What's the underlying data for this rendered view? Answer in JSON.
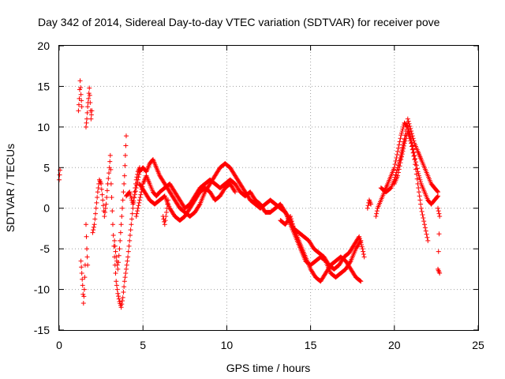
{
  "chart_data": {
    "type": "scatter",
    "title": "Day 342 of 2014, Sidereal Day-to-day VTEC variation (SDTVAR) for receiver pove",
    "xlabel": "GPS time / hours",
    "ylabel": "SDTVAR / TECUs",
    "xlim": [
      0,
      25
    ],
    "ylim": [
      -15,
      20
    ],
    "xticks": [
      0,
      5,
      10,
      15,
      20,
      25
    ],
    "yticks": [
      -15,
      -10,
      -5,
      0,
      5,
      10,
      15,
      20
    ],
    "grid": true,
    "marker": "plus",
    "color": "#ff0000",
    "segments": [
      {
        "points": [
          [
            0.0,
            3.5
          ],
          [
            0.05,
            4.7
          ]
        ]
      },
      {
        "points": [
          [
            1.15,
            12.0
          ],
          [
            1.2,
            13.5
          ],
          [
            1.25,
            15.7
          ],
          [
            1.3,
            14.0
          ],
          [
            1.35,
            12.5
          ]
        ]
      },
      {
        "points": [
          [
            1.3,
            -6.5
          ],
          [
            1.35,
            -8.0
          ],
          [
            1.4,
            -9.5
          ],
          [
            1.45,
            -11.7
          ],
          [
            1.5,
            -10.0
          ],
          [
            1.55,
            -7.0
          ]
        ]
      },
      {
        "points": [
          [
            1.6,
            10.0
          ],
          [
            1.65,
            11.0
          ],
          [
            1.7,
            12.5
          ],
          [
            1.75,
            13.5
          ],
          [
            1.8,
            14.8
          ],
          [
            1.85,
            13.0
          ],
          [
            1.9,
            11.0
          ],
          [
            1.95,
            12.0
          ]
        ]
      },
      {
        "points": [
          [
            1.6,
            -2.0
          ],
          [
            1.65,
            -5.0
          ],
          [
            1.7,
            -7.0
          ]
        ]
      },
      {
        "points": [
          [
            2.0,
            -3.0
          ],
          [
            2.1,
            -2.0
          ],
          [
            2.2,
            0.0
          ],
          [
            2.3,
            2.0
          ],
          [
            2.4,
            3.5
          ],
          [
            2.5,
            3.0
          ],
          [
            2.6,
            1.0
          ],
          [
            2.7,
            -1.0
          ],
          [
            2.8,
            0.5
          ],
          [
            2.9,
            3.0
          ],
          [
            3.0,
            5.0
          ],
          [
            3.05,
            6.5
          ],
          [
            3.1,
            3.0
          ],
          [
            3.2,
            -2.0
          ],
          [
            3.3,
            -6.0
          ],
          [
            3.4,
            -9.0
          ],
          [
            3.5,
            -10.5
          ],
          [
            3.6,
            -11.5
          ],
          [
            3.7,
            -12.2
          ],
          [
            3.8,
            -11.0
          ],
          [
            3.9,
            -9.0
          ],
          [
            4.0,
            -7.5
          ],
          [
            4.1,
            -6.0
          ],
          [
            4.2,
            -4.0
          ],
          [
            4.3,
            -2.0
          ],
          [
            4.4,
            0.0
          ],
          [
            4.5,
            2.0
          ],
          [
            4.6,
            3.5
          ],
          [
            4.7,
            4.5
          ],
          [
            4.8,
            5.0
          ]
        ]
      },
      {
        "points": [
          [
            3.3,
            -4.0
          ],
          [
            3.4,
            -6.0
          ],
          [
            3.5,
            -7.5
          ],
          [
            3.6,
            -5.0
          ],
          [
            3.7,
            -2.0
          ],
          [
            3.8,
            1.0
          ],
          [
            3.9,
            4.0
          ],
          [
            3.95,
            6.5
          ],
          [
            4.0,
            8.9
          ]
        ]
      },
      {
        "points": [
          [
            4.0,
            1.5
          ],
          [
            4.2,
            2.0
          ],
          [
            4.4,
            0.5
          ],
          [
            4.6,
            2.5
          ],
          [
            4.8,
            4.5
          ],
          [
            5.0,
            5.0
          ],
          [
            5.2,
            4.5
          ],
          [
            5.4,
            5.5
          ],
          [
            5.6,
            6.0
          ],
          [
            5.8,
            5.0
          ],
          [
            6.0,
            4.0
          ],
          [
            6.3,
            3.0
          ],
          [
            6.6,
            2.0
          ],
          [
            6.9,
            1.0
          ],
          [
            7.2,
            0.0
          ],
          [
            7.5,
            -0.5
          ],
          [
            7.8,
            -1.0
          ],
          [
            8.1,
            -0.5
          ],
          [
            8.4,
            0.5
          ],
          [
            8.7,
            2.0
          ],
          [
            9.0,
            3.0
          ],
          [
            9.3,
            4.0
          ],
          [
            9.6,
            5.0
          ],
          [
            9.9,
            5.5
          ],
          [
            10.2,
            5.0
          ],
          [
            10.5,
            4.0
          ],
          [
            10.8,
            3.0
          ],
          [
            11.1,
            2.0
          ],
          [
            11.4,
            1.0
          ],
          [
            11.7,
            0.5
          ],
          [
            12.0,
            0.0
          ],
          [
            12.3,
            0.5
          ],
          [
            12.6,
            1.0
          ],
          [
            12.9,
            0.5
          ],
          [
            13.2,
            0.0
          ],
          [
            13.5,
            -0.5
          ],
          [
            13.8,
            -1.5
          ],
          [
            14.1,
            -3.0
          ],
          [
            14.4,
            -4.5
          ],
          [
            14.7,
            -6.0
          ],
          [
            15.0,
            -7.5
          ],
          [
            15.3,
            -8.5
          ],
          [
            15.6,
            -9.0
          ],
          [
            15.9,
            -8.0
          ],
          [
            16.2,
            -7.0
          ],
          [
            16.5,
            -6.5
          ],
          [
            16.8,
            -6.0
          ],
          [
            17.1,
            -6.5
          ],
          [
            17.4,
            -7.5
          ],
          [
            17.7,
            -8.5
          ],
          [
            18.0,
            -9.0
          ]
        ]
      },
      {
        "points": [
          [
            4.6,
            -1.0
          ],
          [
            4.8,
            1.0
          ],
          [
            5.0,
            3.0
          ],
          [
            5.2,
            4.0
          ],
          [
            5.4,
            3.0
          ],
          [
            5.6,
            2.0
          ],
          [
            5.8,
            1.5
          ],
          [
            6.0,
            2.0
          ],
          [
            6.3,
            2.5
          ],
          [
            6.6,
            3.0
          ],
          [
            6.9,
            2.0
          ],
          [
            7.2,
            1.0
          ],
          [
            7.5,
            0.0
          ],
          [
            7.8,
            0.5
          ],
          [
            8.1,
            1.5
          ],
          [
            8.4,
            2.5
          ],
          [
            8.7,
            3.0
          ],
          [
            9.0,
            3.5
          ],
          [
            9.3,
            3.0
          ],
          [
            9.6,
            2.5
          ],
          [
            9.9,
            3.0
          ],
          [
            10.2,
            3.5
          ],
          [
            10.5,
            3.0
          ],
          [
            10.8,
            2.0
          ],
          [
            11.1,
            1.5
          ],
          [
            11.4,
            2.0
          ],
          [
            11.7,
            1.0
          ],
          [
            12.0,
            0.5
          ],
          [
            12.3,
            -0.5
          ],
          [
            12.6,
            -0.5
          ],
          [
            12.9,
            0.0
          ],
          [
            13.2,
            0.5
          ],
          [
            13.5,
            -0.5
          ],
          [
            13.8,
            -2.0
          ],
          [
            14.1,
            -3.5
          ],
          [
            14.4,
            -5.0
          ],
          [
            14.7,
            -6.5
          ],
          [
            15.0,
            -7.0
          ],
          [
            15.3,
            -6.5
          ],
          [
            15.6,
            -6.0
          ],
          [
            15.9,
            -6.5
          ],
          [
            16.2,
            -8.0
          ],
          [
            16.5,
            -8.5
          ],
          [
            16.8,
            -8.0
          ],
          [
            17.1,
            -7.5
          ],
          [
            17.4,
            -6.5
          ],
          [
            17.7,
            -5.0
          ],
          [
            18.0,
            -4.0
          ]
        ]
      },
      {
        "points": [
          [
            4.8,
            3.0
          ],
          [
            5.1,
            2.0
          ],
          [
            5.4,
            1.0
          ],
          [
            5.7,
            0.5
          ],
          [
            6.0,
            1.0
          ],
          [
            6.3,
            1.5
          ],
          [
            6.6,
            0.0
          ],
          [
            6.9,
            -1.0
          ],
          [
            7.2,
            -1.5
          ],
          [
            7.5,
            -1.0
          ],
          [
            7.8,
            0.0
          ],
          [
            8.1,
            1.0
          ],
          [
            8.4,
            2.0
          ],
          [
            8.7,
            2.5
          ],
          [
            9.0,
            2.0
          ],
          [
            9.3,
            1.0
          ],
          [
            9.6,
            1.5
          ],
          [
            9.9,
            2.5
          ],
          [
            10.2,
            3.0
          ],
          [
            10.5,
            2.0
          ]
        ]
      },
      {
        "points": [
          [
            6.2,
            -1.0
          ],
          [
            6.3,
            -2.0
          ],
          [
            6.4,
            -0.5
          ],
          [
            6.5,
            1.0
          ]
        ]
      },
      {
        "points": [
          [
            13.2,
            -1.5
          ],
          [
            13.5,
            -2.0
          ],
          [
            13.8,
            -1.0
          ],
          [
            14.0,
            -2.5
          ],
          [
            14.3,
            -3.0
          ],
          [
            14.6,
            -3.5
          ],
          [
            14.9,
            -4.0
          ],
          [
            15.2,
            -5.0
          ],
          [
            15.5,
            -5.5
          ],
          [
            15.8,
            -6.0
          ],
          [
            16.1,
            -7.0
          ],
          [
            16.4,
            -7.5
          ],
          [
            16.7,
            -7.0
          ],
          [
            17.0,
            -6.0
          ],
          [
            17.3,
            -5.5
          ],
          [
            17.6,
            -4.5
          ],
          [
            17.9,
            -3.5
          ],
          [
            18.1,
            -5.0
          ],
          [
            18.2,
            -6.0
          ]
        ]
      },
      {
        "points": [
          [
            18.4,
            0.0
          ],
          [
            18.5,
            1.0
          ],
          [
            18.6,
            0.5
          ]
        ]
      },
      {
        "points": [
          [
            18.9,
            -1.0
          ],
          [
            19.0,
            0.0
          ],
          [
            19.2,
            1.0
          ],
          [
            19.4,
            2.0
          ],
          [
            19.6,
            3.0
          ],
          [
            19.8,
            4.0
          ],
          [
            20.0,
            5.0
          ],
          [
            20.2,
            7.0
          ],
          [
            20.4,
            9.0
          ],
          [
            20.6,
            10.5
          ],
          [
            20.8,
            10.0
          ],
          [
            21.0,
            8.5
          ],
          [
            21.2,
            6.5
          ],
          [
            21.4,
            4.5
          ],
          [
            21.6,
            3.0
          ],
          [
            21.8,
            2.0
          ],
          [
            22.0,
            1.0
          ],
          [
            22.2,
            0.5
          ],
          [
            22.4,
            1.0
          ],
          [
            22.6,
            1.5
          ]
        ]
      },
      {
        "points": [
          [
            19.2,
            2.5
          ],
          [
            19.5,
            2.0
          ],
          [
            19.8,
            2.5
          ],
          [
            20.0,
            3.5
          ],
          [
            20.2,
            5.0
          ],
          [
            20.4,
            6.5
          ],
          [
            20.6,
            8.5
          ],
          [
            20.8,
            11.0
          ],
          [
            21.0,
            9.5
          ],
          [
            21.2,
            8.0
          ],
          [
            21.4,
            7.0
          ],
          [
            21.6,
            6.0
          ],
          [
            21.8,
            5.0
          ],
          [
            22.0,
            4.0
          ],
          [
            22.2,
            3.0
          ],
          [
            22.4,
            2.5
          ],
          [
            22.6,
            2.0
          ]
        ]
      },
      {
        "points": [
          [
            20.0,
            3.0
          ],
          [
            20.2,
            4.0
          ],
          [
            20.4,
            6.0
          ],
          [
            20.6,
            8.0
          ],
          [
            20.8,
            9.5
          ],
          [
            21.0,
            8.0
          ],
          [
            21.2,
            6.0
          ],
          [
            21.4,
            3.0
          ],
          [
            21.6,
            0.0
          ],
          [
            21.8,
            -2.0
          ],
          [
            22.0,
            -4.0
          ]
        ]
      },
      {
        "points": [
          [
            22.6,
            0.0
          ],
          [
            22.7,
            -1.0
          ],
          [
            22.6,
            -7.5
          ],
          [
            22.7,
            -8.0
          ]
        ]
      }
    ]
  }
}
